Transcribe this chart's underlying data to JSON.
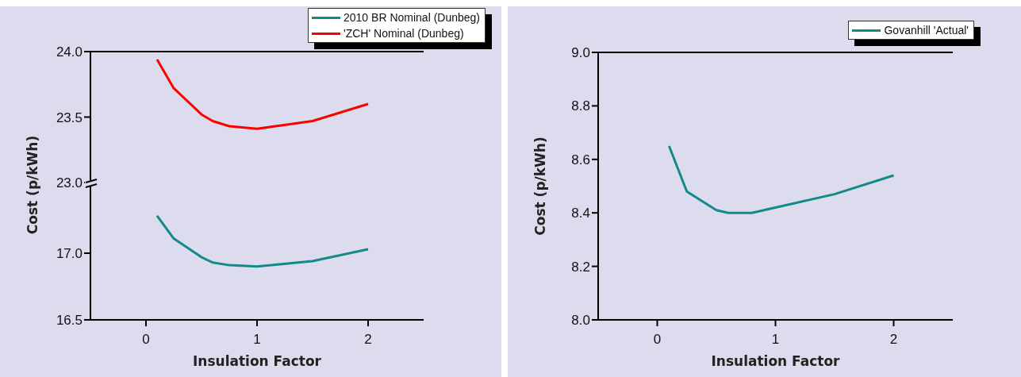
{
  "chart_data": [
    {
      "type": "line",
      "x": [
        0.1,
        0.25,
        0.5,
        0.6,
        0.75,
        1,
        1.5,
        2
      ],
      "series": [
        {
          "name": "'ZCH' Nominal (Dunbeg)",
          "color": "#ff0000",
          "values": [
            23.94,
            23.72,
            23.52,
            23.47,
            23.43,
            23.41,
            23.47,
            23.6
          ]
        }
      ],
      "xlim": [
        -0.5,
        2.5
      ],
      "ylim": [
        23.0,
        24.0
      ],
      "yticks": [
        {
          "value": 23,
          "label": "23.0"
        },
        23.5,
        {
          "value": 24,
          "label": "24.0"
        }
      ],
      "tick_labels": "y",
      "legend": "top right"
    },
    {
      "type": "line",
      "x": [
        0.1,
        0.25,
        0.5,
        0.6,
        0.75,
        1,
        1.5,
        2
      ],
      "series": [
        {
          "name": "2010 BR Nominal (Dunbeg)",
          "color": "#138a8a",
          "values": [
            17.28,
            17.11,
            16.97,
            16.93,
            16.91,
            16.9,
            16.94,
            17.03
          ]
        }
      ],
      "xlim": [
        -0.5,
        2.5
      ],
      "xticks": [
        0,
        1,
        2
      ],
      "ylim": [
        16.5,
        17.5
      ],
      "yticks": [
        16.5,
        {
          "value": 17,
          "label": "17.0"
        }
      ],
      "xlabel": "Insulation Factor",
      "ylabel": "Cost (p/kWh)",
      "legend": "top right"
    },
    {
      "type": "line",
      "x": [
        0.1,
        0.25,
        0.5,
        0.6,
        0.8,
        1,
        1.5,
        2
      ],
      "series": [
        {
          "name": "Govanhill 'Actual'",
          "color": "#138a8a",
          "values": [
            8.65,
            8.48,
            8.41,
            8.4,
            8.4,
            8.42,
            8.47,
            8.54
          ]
        }
      ],
      "xlim": [
        -0.5,
        2.5
      ],
      "xticks": [
        0,
        1,
        2
      ],
      "ylim": [
        8.0,
        9.0
      ],
      "yticks": [
        {
          "value": 8,
          "label": "8.0"
        },
        8.2,
        8.4,
        8.6,
        8.8,
        {
          "value": 9,
          "label": "9.0"
        }
      ],
      "xlabel": "Insulation Factor",
      "ylabel": "Cost (p/kWh)",
      "legend": "top right"
    }
  ]
}
